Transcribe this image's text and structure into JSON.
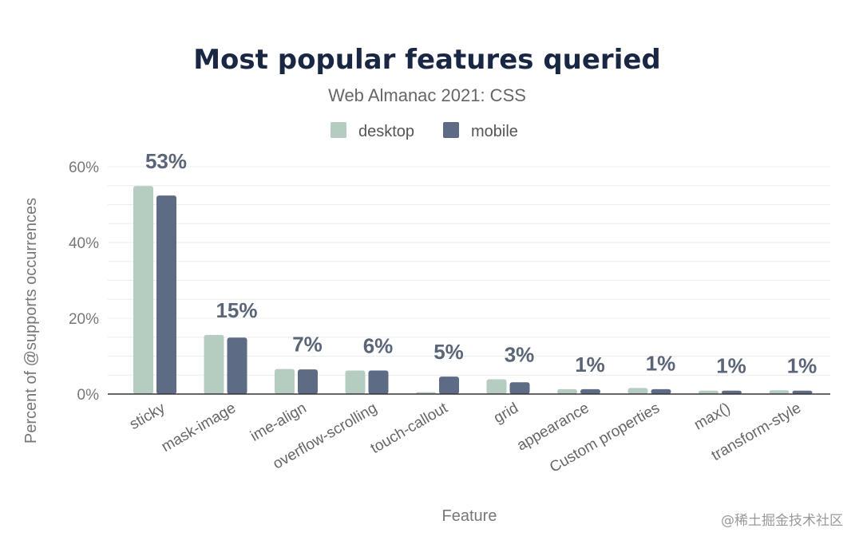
{
  "chart_data": {
    "type": "bar",
    "title": "Most popular features queried",
    "subtitle": "Web Almanac 2021: CSS",
    "xlabel": "Feature",
    "ylabel": "Percent of @supports occurrences",
    "ylim": [
      0,
      60
    ],
    "yticks": [
      0,
      20,
      40,
      60
    ],
    "ytick_labels": [
      "0%",
      "20%",
      "40%",
      "60%"
    ],
    "grid": true,
    "legend_position": "top",
    "categories": [
      "sticky",
      "mask-image",
      "ime-align",
      "overflow-scrolling",
      "touch-callout",
      "grid",
      "appearance",
      "Custom properties",
      "max()",
      "transform-style"
    ],
    "series": [
      {
        "name": "desktop",
        "color": "#b5cdc0",
        "values": [
          54.9,
          15.6,
          6.6,
          6.2,
          0.5,
          3.9,
          1.3,
          1.6,
          0.9,
          1.0
        ]
      },
      {
        "name": "mobile",
        "color": "#5e6b84",
        "values": [
          52.4,
          14.9,
          6.5,
          6.2,
          4.6,
          3.1,
          1.3,
          1.3,
          0.9,
          0.9
        ]
      }
    ],
    "data_labels": [
      "53%",
      "15%",
      "7%",
      "6%",
      "5%",
      "3%",
      "1%",
      "1%",
      "1%",
      "1%"
    ]
  },
  "watermark": "@稀土掘金技术社区"
}
